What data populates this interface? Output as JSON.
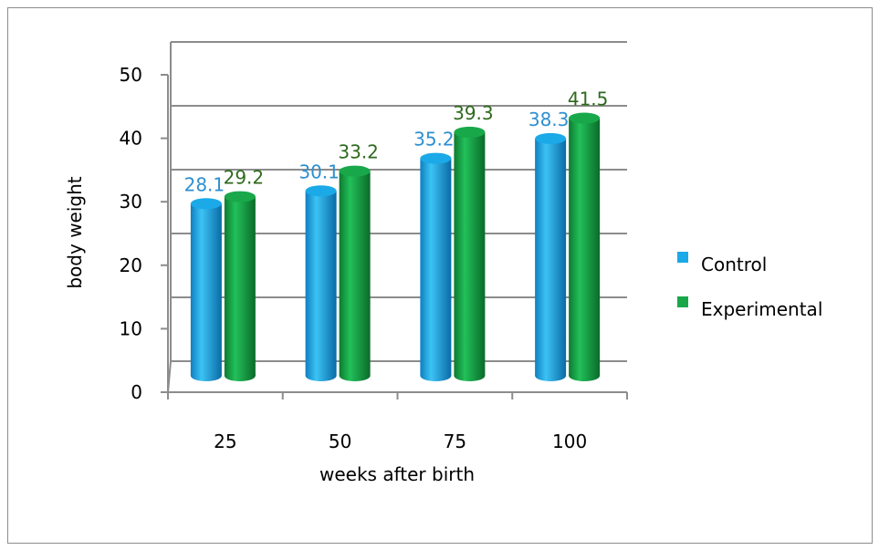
{
  "chart_data": {
    "type": "bar",
    "style": "3d-cylinder",
    "categories": [
      "25",
      "50",
      "75",
      "100"
    ],
    "series": [
      {
        "name": "Control",
        "values": [
          28.1,
          30.1,
          35.2,
          38.3
        ],
        "color": "#1BA9E8",
        "label_color": "#2E8FD0"
      },
      {
        "name": "Experimental",
        "values": [
          29.2,
          33.2,
          39.3,
          41.5
        ],
        "color": "#18A84A",
        "label_color": "#2E6A1E"
      }
    ],
    "title": "",
    "xlabel": "weeks after birth",
    "ylabel": "body weight",
    "ylim": [
      0,
      50
    ],
    "yticks": [
      "0",
      "10",
      "20",
      "30",
      "40",
      "50"
    ],
    "grid": true,
    "legend_position": "right"
  }
}
